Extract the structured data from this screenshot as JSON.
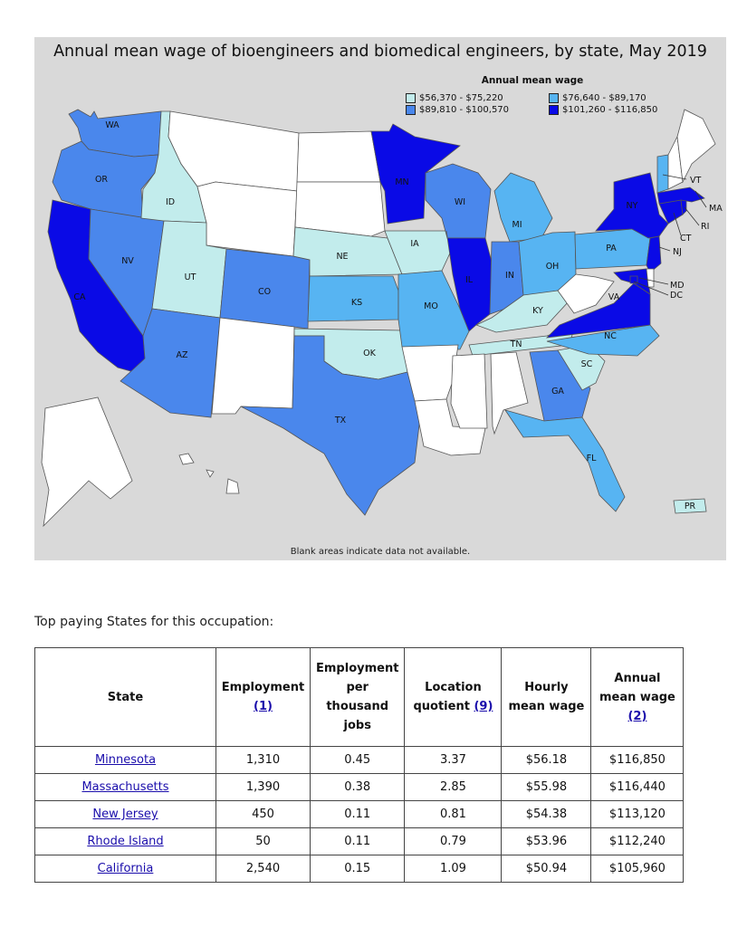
{
  "map": {
    "title": "Annual mean wage of bioengineers and biomedical engineers, by state, May 2019",
    "legend_title": "Annual mean wage",
    "legend": [
      {
        "label": "$56,370 - $75,220",
        "color": "#c2ecec"
      },
      {
        "label": "$76,640 - $89,170",
        "color": "#57b4f2"
      },
      {
        "label": "$89,810 - $100,570",
        "color": "#4a87ec"
      },
      {
        "label": "$101,260 - $116,850",
        "color": "#0a0ae6"
      }
    ],
    "footnote": "Blank areas indicate data not available.",
    "states": [
      {
        "abbr": "WA",
        "bin": 2
      },
      {
        "abbr": "OR",
        "bin": 2
      },
      {
        "abbr": "CA",
        "bin": 3
      },
      {
        "abbr": "NV",
        "bin": 2
      },
      {
        "abbr": "ID",
        "bin": 0
      },
      {
        "abbr": "UT",
        "bin": 0
      },
      {
        "abbr": "AZ",
        "bin": 2
      },
      {
        "abbr": "CO",
        "bin": 2
      },
      {
        "abbr": "NE",
        "bin": 0
      },
      {
        "abbr": "KS",
        "bin": 1
      },
      {
        "abbr": "OK",
        "bin": 0
      },
      {
        "abbr": "TX",
        "bin": 2
      },
      {
        "abbr": "MN",
        "bin": 3
      },
      {
        "abbr": "IA",
        "bin": 0
      },
      {
        "abbr": "MO",
        "bin": 1
      },
      {
        "abbr": "WI",
        "bin": 2
      },
      {
        "abbr": "IL",
        "bin": 3
      },
      {
        "abbr": "MI",
        "bin": 1
      },
      {
        "abbr": "IN",
        "bin": 2
      },
      {
        "abbr": "OH",
        "bin": 1
      },
      {
        "abbr": "KY",
        "bin": 0
      },
      {
        "abbr": "TN",
        "bin": 0
      },
      {
        "abbr": "GA",
        "bin": 2
      },
      {
        "abbr": "FL",
        "bin": 1
      },
      {
        "abbr": "SC",
        "bin": 0
      },
      {
        "abbr": "NC",
        "bin": 1
      },
      {
        "abbr": "VA",
        "bin": 3
      },
      {
        "abbr": "PA",
        "bin": 1
      },
      {
        "abbr": "NY",
        "bin": 3
      },
      {
        "abbr": "VT",
        "bin": 1
      },
      {
        "abbr": "MA",
        "bin": 3
      },
      {
        "abbr": "RI",
        "bin": 3
      },
      {
        "abbr": "CT",
        "bin": 3
      },
      {
        "abbr": "NJ",
        "bin": 3
      },
      {
        "abbr": "MD",
        "bin": 3
      },
      {
        "abbr": "DC",
        "bin": 3
      },
      {
        "abbr": "PR",
        "bin": 0
      },
      {
        "abbr": "MT",
        "bin": null
      },
      {
        "abbr": "WY",
        "bin": null
      },
      {
        "abbr": "ND",
        "bin": null
      },
      {
        "abbr": "SD",
        "bin": null
      },
      {
        "abbr": "NM",
        "bin": null
      },
      {
        "abbr": "AR",
        "bin": null
      },
      {
        "abbr": "LA",
        "bin": null
      },
      {
        "abbr": "MS",
        "bin": null
      },
      {
        "abbr": "AL",
        "bin": null
      },
      {
        "abbr": "WV",
        "bin": null
      },
      {
        "abbr": "ME",
        "bin": null
      },
      {
        "abbr": "NH",
        "bin": null
      },
      {
        "abbr": "DE",
        "bin": null
      },
      {
        "abbr": "AK",
        "bin": null
      },
      {
        "abbr": "HI",
        "bin": null
      }
    ]
  },
  "table": {
    "caption": "Top paying States for this occupation:",
    "headers": {
      "state": "State",
      "employment": "Employment",
      "employment_note": "(1)",
      "per_thousand": "Employment per thousand jobs",
      "location_quotient": "Location quotient",
      "location_quotient_note": "(9)",
      "hourly": "Hourly mean wage",
      "annual": "Annual mean wage",
      "annual_note": "(2)"
    },
    "rows": [
      {
        "state": "Minnesota",
        "employment": "1,310",
        "per_thousand": "0.45",
        "lq": "3.37",
        "hourly": "$56.18",
        "annual": "$116,850"
      },
      {
        "state": "Massachusetts",
        "employment": "1,390",
        "per_thousand": "0.38",
        "lq": "2.85",
        "hourly": "$55.98",
        "annual": "$116,440"
      },
      {
        "state": "New Jersey",
        "employment": "450",
        "per_thousand": "0.11",
        "lq": "0.81",
        "hourly": "$54.38",
        "annual": "$113,120"
      },
      {
        "state": "Rhode Island",
        "employment": "50",
        "per_thousand": "0.11",
        "lq": "0.79",
        "hourly": "$53.96",
        "annual": "$112,240"
      },
      {
        "state": "California",
        "employment": "2,540",
        "per_thousand": "0.15",
        "lq": "1.09",
        "hourly": "$50.94",
        "annual": "$105,960"
      }
    ]
  }
}
